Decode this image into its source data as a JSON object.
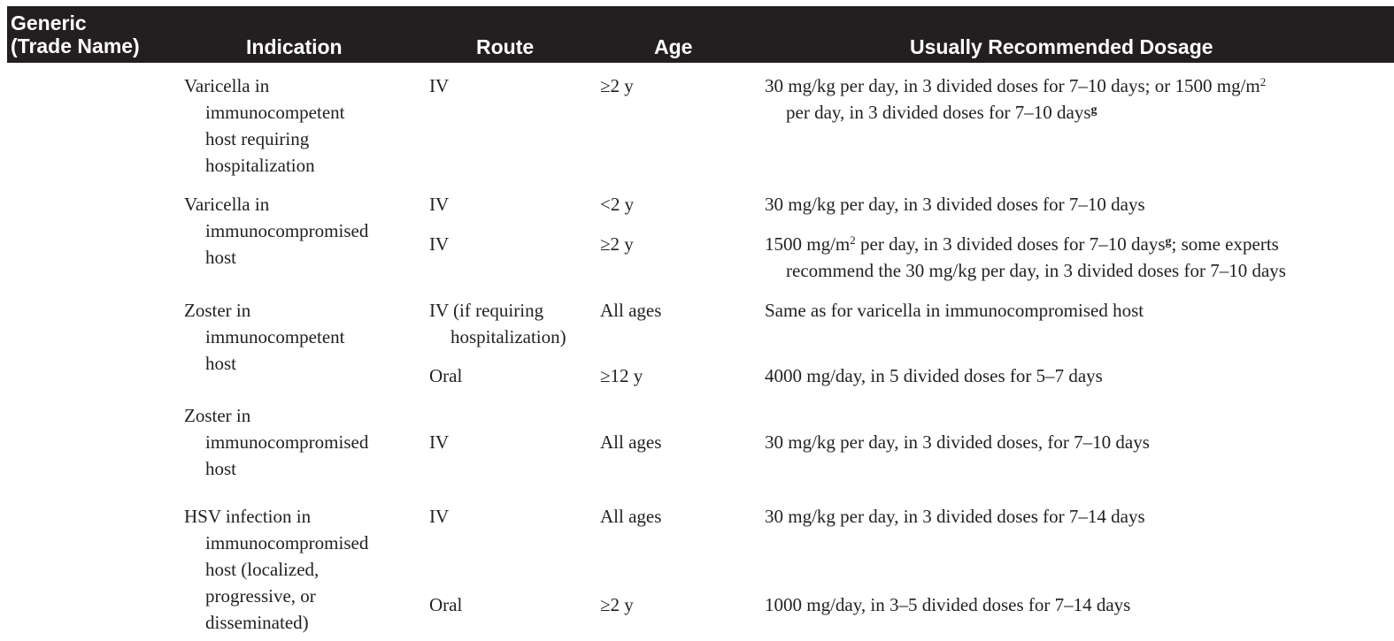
{
  "header": {
    "generic_line1": "Generic",
    "generic_line2": "(Trade Name)",
    "indication": "Indication",
    "route": "Route",
    "age": "Age",
    "dosage": "Usually Recommended Dosage"
  },
  "rows": [
    {
      "indication": [
        "Varicella in",
        "immunocompetent",
        "host requiring",
        "hospitalization"
      ],
      "route": "IV",
      "age": "≥2 y",
      "dosage_a": "30 mg/kg per day, in 3 divided doses for 7–10 days; or 1500 mg/m",
      "dosage_a_sup": "2",
      "dosage_b": "per day, in 3 divided doses for 7–10 days",
      "dosage_b_fn": "g"
    },
    {
      "indication": [
        "Varicella in",
        "immunocompromised",
        "host"
      ],
      "route": "IV",
      "age": "<2 y",
      "dosage": "30 mg/kg per day, in 3 divided doses for 7–10 days"
    },
    {
      "route": "IV",
      "age": "≥2 y",
      "dosage_a": "1500 mg/m",
      "dosage_a_sup": "2",
      "dosage_a_mid": " per day, in 3 divided doses for 7–10 days",
      "dosage_a_fn": "g",
      "dosage_a_end": "; some experts",
      "dosage_b": "recommend the 30 mg/kg per day, in 3 divided doses for 7–10 days"
    },
    {
      "indication": [
        "Zoster in",
        "immunocompetent",
        "host"
      ],
      "route": [
        "IV (if requiring",
        "hospitalization)"
      ],
      "age": "All ages",
      "dosage": "Same as for varicella in immunocompromised host"
    },
    {
      "route": "Oral",
      "age": "≥12 y",
      "dosage": "4000 mg/day, in 5 divided doses for 5–7 days"
    },
    {
      "indication": [
        "Zoster in",
        "immunocompromised",
        "host"
      ],
      "route": "IV",
      "age": "All ages",
      "dosage": "30 mg/kg per day, in 3 divided doses, for 7–10 days"
    },
    {
      "indication": [
        "HSV infection in",
        "immunocompromised",
        "host (localized,",
        "progressive, or",
        "disseminated)"
      ],
      "route": "IV",
      "age": "All ages",
      "dosage": "30 mg/kg per day, in 3 divided doses for 7–14 days"
    },
    {
      "route": "Oral",
      "age": "≥2 y",
      "dosage": "1000 mg/day, in 3–5 divided doses for 7–14 days"
    }
  ]
}
